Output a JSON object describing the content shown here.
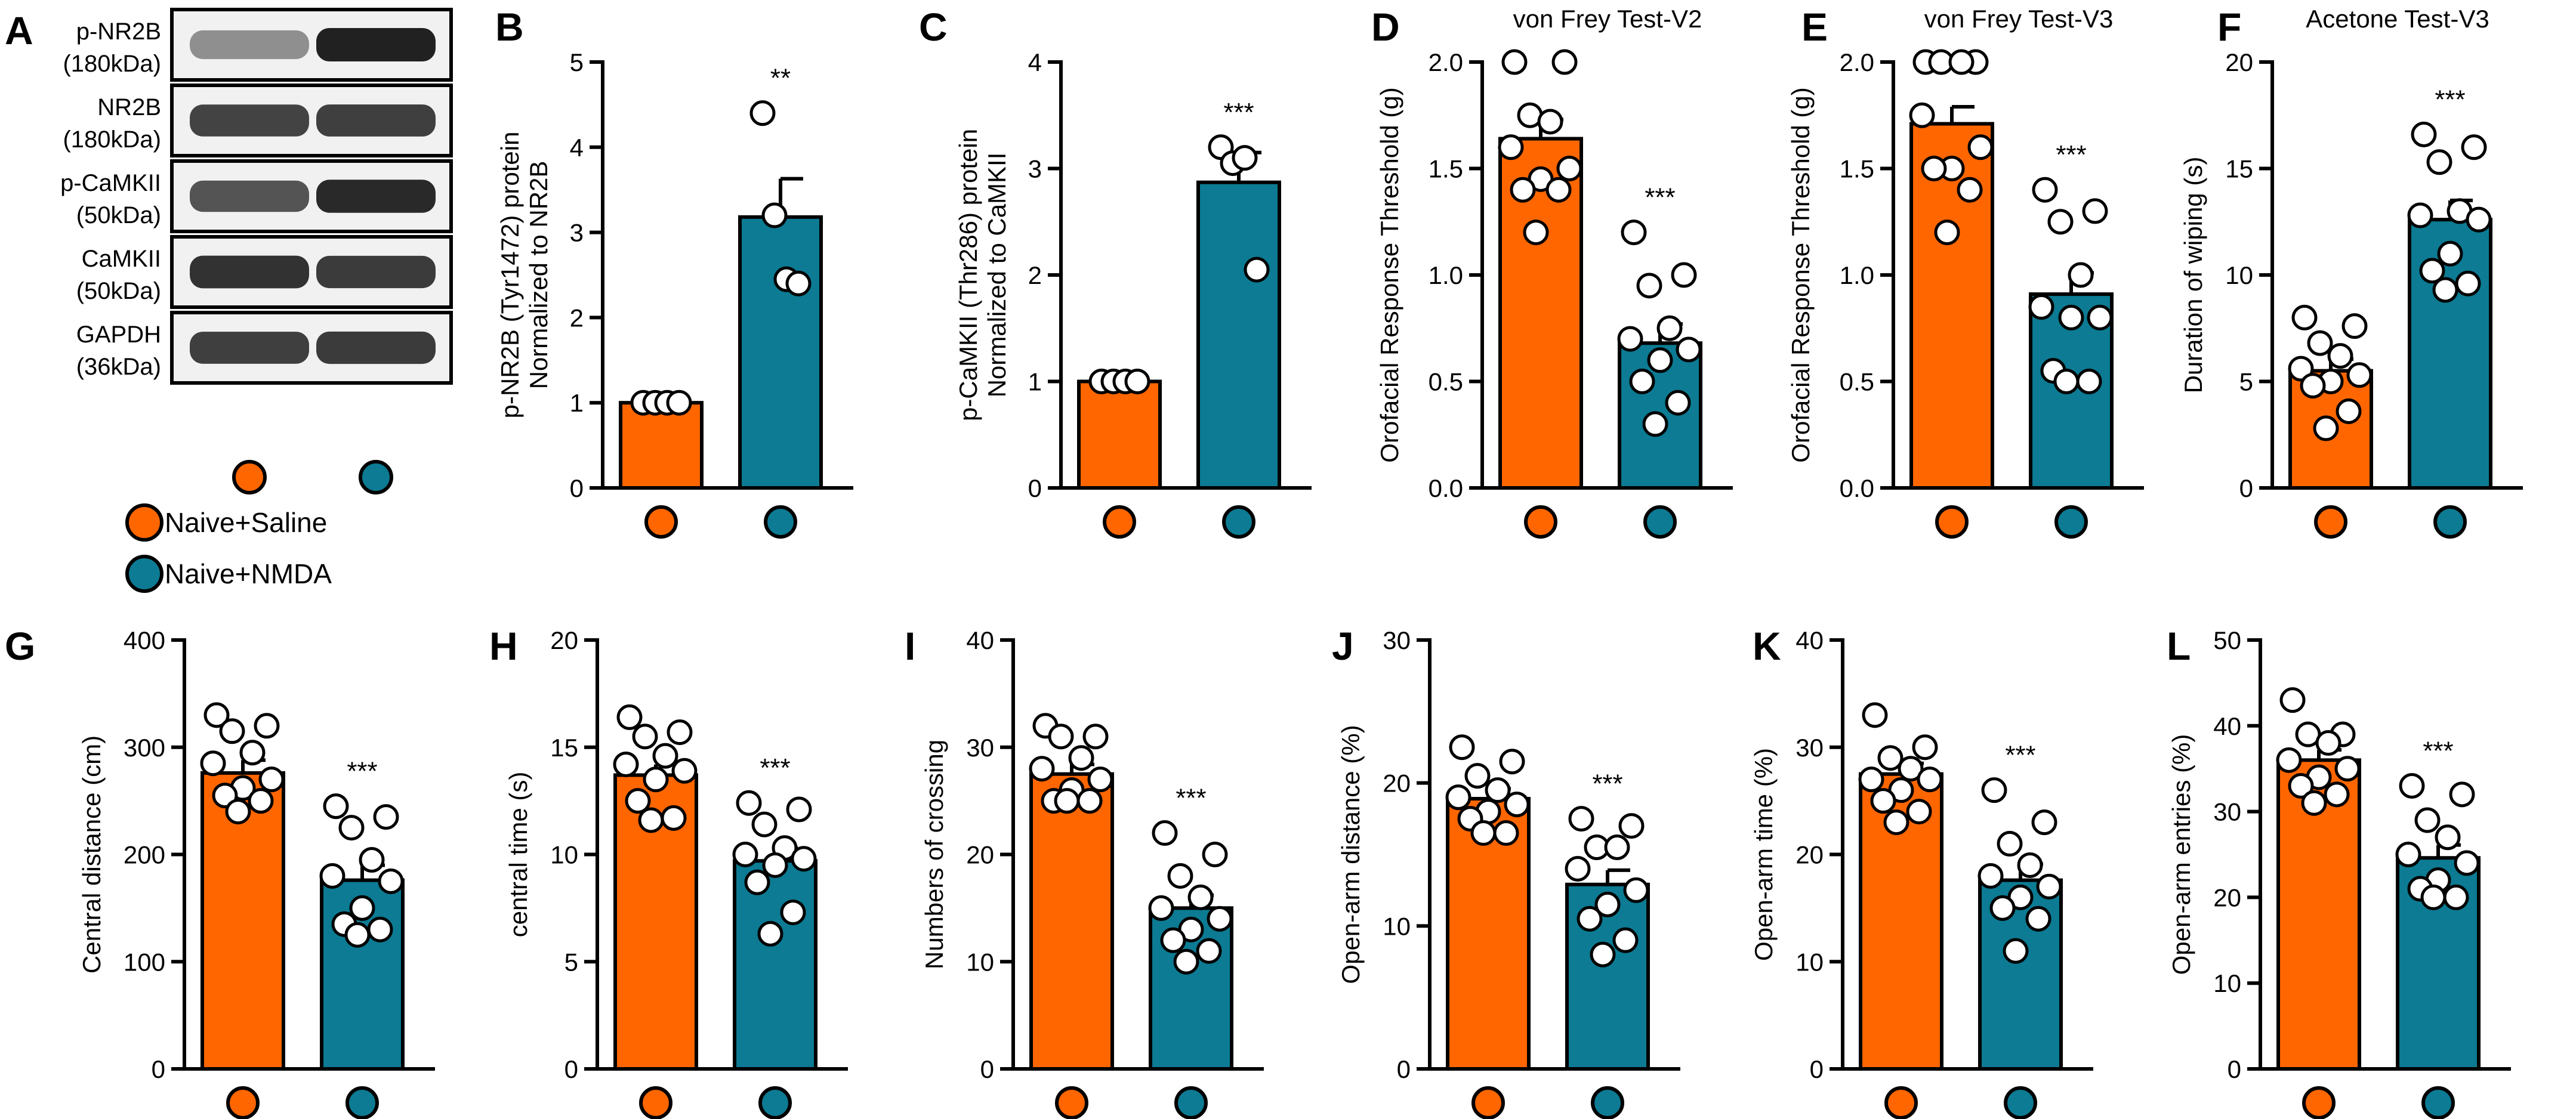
{
  "colors": {
    "saline": "#FF6600",
    "nmda": "#0C7B93",
    "black": "#000000",
    "white": "#FFFFFF"
  },
  "significance_marker": "***",
  "legend": [
    {
      "label": "Naive+Saline",
      "color": "#FF6600"
    },
    {
      "label": "Naive+NMDA",
      "color": "#0C7B93"
    }
  ],
  "western_blot": {
    "panel_letter": "A",
    "blots": [
      {
        "name": "p-NR2B",
        "mw": "(180kDa)",
        "band_intensity": [
          0.35,
          1.0
        ]
      },
      {
        "name": "NR2B",
        "mw": "(180kDa)",
        "band_intensity": [
          0.8,
          0.82
        ]
      },
      {
        "name": "p-CaMKII",
        "mw": "(50kDa)",
        "band_intensity": [
          0.7,
          0.95
        ]
      },
      {
        "name": "CaMKII",
        "mw": "(50kDa)",
        "band_intensity": [
          0.9,
          0.85
        ]
      },
      {
        "name": "GAPDH",
        "mw": "(36kDa)",
        "band_intensity": [
          0.82,
          0.85
        ]
      }
    ]
  },
  "chart_data": [
    {
      "id": "B",
      "type": "bar",
      "title": "",
      "ylabel": [
        "p-NR2B (Tyr1472) protein",
        "Normalized to NR2B"
      ],
      "ylim": [
        0,
        5
      ],
      "ticks": [
        "0",
        "1",
        "2",
        "3",
        "4",
        "5"
      ],
      "tick_values": [
        0,
        1,
        2,
        3,
        4,
        5
      ],
      "categories": [
        "Naive+Saline",
        "Naive+NMDA"
      ],
      "series": [
        {
          "name": "Naive+Saline",
          "mean": 1.0,
          "sem": 0.0,
          "points": [
            1.0,
            1.0,
            1.0,
            1.0
          ]
        },
        {
          "name": "Naive+NMDA",
          "mean": 3.18,
          "sem": 0.45,
          "points": [
            4.4,
            3.2,
            2.45,
            2.4
          ]
        }
      ],
      "significance": "**"
    },
    {
      "id": "C",
      "type": "bar",
      "title": "",
      "ylabel": [
        "p-CaMKII (Thr286) protein",
        "Normalized to CaMKII"
      ],
      "ylim": [
        0,
        4
      ],
      "ticks": [
        "0",
        "1",
        "2",
        "3",
        "4"
      ],
      "tick_values": [
        0,
        1,
        2,
        3,
        4
      ],
      "categories": [
        "Naive+Saline",
        "Naive+NMDA"
      ],
      "series": [
        {
          "name": "Naive+Saline",
          "mean": 1.0,
          "sem": 0.0,
          "points": [
            1.0,
            1.0,
            1.0,
            1.0
          ]
        },
        {
          "name": "Naive+NMDA",
          "mean": 2.87,
          "sem": 0.28,
          "points": [
            3.2,
            3.05,
            3.1,
            2.05
          ]
        }
      ],
      "significance": "***"
    },
    {
      "id": "D",
      "type": "bar",
      "title": "von Frey Test-V2",
      "ylabel": [
        "Orofacial Response Threshold (g)"
      ],
      "ylim": [
        0,
        2
      ],
      "ticks": [
        "0.0",
        "0.5",
        "1.0",
        "1.5",
        "2.0"
      ],
      "tick_values": [
        0,
        0.5,
        1,
        1.5,
        2
      ],
      "categories": [
        "Naive+Saline",
        "Naive+NMDA"
      ],
      "series": [
        {
          "name": "Naive+Saline",
          "mean": 1.64,
          "sem": 0.09,
          "points": [
            2.0,
            2.0,
            1.75,
            1.72,
            1.6,
            1.5,
            1.45,
            1.4,
            1.4,
            1.2
          ]
        },
        {
          "name": "Naive+NMDA",
          "mean": 0.68,
          "sem": 0.09,
          "points": [
            1.2,
            1.0,
            0.95,
            0.75,
            0.7,
            0.65,
            0.6,
            0.5,
            0.4,
            0.3
          ]
        }
      ],
      "significance": "***"
    },
    {
      "id": "E",
      "type": "bar",
      "title": "von Frey Test-V3",
      "ylabel": [
        "Orofacial Response Threshold (g)"
      ],
      "ylim": [
        0,
        2
      ],
      "ticks": [
        "0.0",
        "0.5",
        "1.0",
        "1.5",
        "2.0"
      ],
      "tick_values": [
        0,
        0.5,
        1,
        1.5,
        2
      ],
      "categories": [
        "Naive+Saline",
        "Naive+NMDA"
      ],
      "series": [
        {
          "name": "Naive+Saline",
          "mean": 1.71,
          "sem": 0.08,
          "points": [
            2.0,
            2.0,
            2.0,
            2.0,
            1.75,
            1.6,
            1.5,
            1.5,
            1.4,
            1.2
          ]
        },
        {
          "name": "Naive+NMDA",
          "mean": 0.91,
          "sem": 0.1,
          "points": [
            1.4,
            1.3,
            1.25,
            1.0,
            0.85,
            0.8,
            0.8,
            0.55,
            0.5,
            0.5
          ]
        }
      ],
      "significance": "***"
    },
    {
      "id": "F",
      "type": "bar",
      "title": "Acetone Test-V3",
      "ylabel": [
        "Duration of wiping (s)"
      ],
      "ylim": [
        0,
        20
      ],
      "ticks": [
        "0",
        "5",
        "10",
        "15",
        "20"
      ],
      "tick_values": [
        0,
        5,
        10,
        15,
        20
      ],
      "categories": [
        "Naive+Saline",
        "Naive+NMDA"
      ],
      "series": [
        {
          "name": "Naive+Saline",
          "mean": 5.5,
          "sem": 0.55,
          "points": [
            8.0,
            7.6,
            6.8,
            6.2,
            5.6,
            5.3,
            5.0,
            4.8,
            3.6,
            2.8
          ]
        },
        {
          "name": "Naive+NMDA",
          "mean": 12.6,
          "sem": 0.9,
          "points": [
            16.6,
            16.0,
            15.3,
            13.0,
            12.8,
            12.6,
            11.0,
            10.2,
            9.6,
            9.3
          ]
        }
      ],
      "significance": "***"
    },
    {
      "id": "G",
      "type": "bar",
      "title": "",
      "ylabel": [
        "Central distance (cm)"
      ],
      "ylim": [
        0,
        400
      ],
      "ticks": [
        "0",
        "100",
        "200",
        "300",
        "400"
      ],
      "tick_values": [
        0,
        100,
        200,
        300,
        400
      ],
      "categories": [
        "Naive+Saline",
        "Naive+NMDA"
      ],
      "series": [
        {
          "name": "Naive+Saline",
          "mean": 276,
          "sem": 12,
          "points": [
            330,
            320,
            315,
            295,
            285,
            270,
            262,
            255,
            250,
            240
          ]
        },
        {
          "name": "Naive+NMDA",
          "mean": 176,
          "sem": 14,
          "points": [
            245,
            235,
            225,
            195,
            180,
            175,
            150,
            135,
            130,
            125
          ]
        }
      ],
      "significance": "***"
    },
    {
      "id": "H",
      "type": "bar",
      "title": "",
      "ylabel": [
        "central time (s)"
      ],
      "ylim": [
        0,
        20
      ],
      "ticks": [
        "0",
        "5",
        "10",
        "15",
        "20"
      ],
      "tick_values": [
        0,
        5,
        10,
        15,
        20
      ],
      "categories": [
        "Naive+Saline",
        "Naive+NMDA"
      ],
      "series": [
        {
          "name": "Naive+Saline",
          "mean": 13.7,
          "sem": 0.5,
          "points": [
            16.4,
            15.7,
            15.5,
            14.6,
            14.2,
            13.9,
            13.5,
            12.5,
            11.7,
            11.6
          ]
        },
        {
          "name": "Naive+NMDA",
          "mean": 9.7,
          "sem": 0.6,
          "points": [
            12.4,
            12.1,
            11.4,
            10.3,
            10.0,
            9.8,
            9.5,
            8.7,
            7.3,
            6.3
          ]
        }
      ],
      "significance": "***"
    },
    {
      "id": "I",
      "type": "bar",
      "title": "",
      "ylabel": [
        "Numbers of crossing"
      ],
      "ylim": [
        0,
        40
      ],
      "ticks": [
        "0",
        "10",
        "20",
        "30",
        "40"
      ],
      "tick_values": [
        0,
        10,
        20,
        30,
        40
      ],
      "categories": [
        "Naive+Saline",
        "Naive+NMDA"
      ],
      "series": [
        {
          "name": "Naive+Saline",
          "mean": 27.5,
          "sem": 0.9,
          "points": [
            32,
            31,
            31,
            29,
            28,
            27,
            26,
            25,
            25,
            25
          ]
        },
        {
          "name": "Naive+NMDA",
          "mean": 15.0,
          "sem": 1.2,
          "points": [
            22,
            20,
            18,
            16,
            15,
            14,
            13,
            12,
            11,
            10
          ]
        }
      ],
      "significance": "***"
    },
    {
      "id": "J",
      "type": "bar",
      "title": "",
      "ylabel": [
        "Open-arm distance (%)"
      ],
      "ylim": [
        0,
        30
      ],
      "ticks": [
        "0",
        "10",
        "20",
        "30"
      ],
      "tick_values": [
        0,
        10,
        20,
        30
      ],
      "categories": [
        "Naive+Saline",
        "Naive+NMDA"
      ],
      "series": [
        {
          "name": "Naive+Saline",
          "mean": 18.9,
          "sem": 0.7,
          "points": [
            22.5,
            21.5,
            20.5,
            19.5,
            19.0,
            18.5,
            18.0,
            17.5,
            16.5,
            16.5
          ]
        },
        {
          "name": "Naive+NMDA",
          "mean": 12.9,
          "sem": 1.0,
          "points": [
            17.5,
            17.0,
            15.5,
            15.5,
            14.0,
            12.5,
            11.5,
            10.5,
            9.0,
            8.0
          ]
        }
      ],
      "significance": "***"
    },
    {
      "id": "K",
      "type": "bar",
      "title": "",
      "ylabel": [
        "Open-arm time (%)"
      ],
      "ylim": [
        0,
        40
      ],
      "ticks": [
        "0",
        "10",
        "20",
        "30",
        "40"
      ],
      "tick_values": [
        0,
        10,
        20,
        30,
        40
      ],
      "categories": [
        "Naive+Saline",
        "Naive+NMDA"
      ],
      "series": [
        {
          "name": "Naive+Saline",
          "mean": 27.5,
          "sem": 1.0,
          "points": [
            33,
            30,
            29,
            28,
            27,
            27,
            26,
            25,
            24,
            23
          ]
        },
        {
          "name": "Naive+NMDA",
          "mean": 17.6,
          "sem": 1.5,
          "points": [
            26,
            23,
            21,
            19,
            18,
            17,
            16,
            15,
            14,
            11
          ]
        }
      ],
      "significance": "***"
    },
    {
      "id": "L",
      "type": "bar",
      "title": "",
      "ylabel": [
        "Open-arm entries (%)"
      ],
      "ylim": [
        0,
        50
      ],
      "ticks": [
        "0",
        "10",
        "20",
        "30",
        "40",
        "50"
      ],
      "tick_values": [
        0,
        10,
        20,
        30,
        40,
        50
      ],
      "categories": [
        "Naive+Saline",
        "Naive+NMDA"
      ],
      "series": [
        {
          "name": "Naive+Saline",
          "mean": 36.0,
          "sem": 1.2,
          "points": [
            43,
            39,
            39,
            38,
            36,
            35,
            34,
            33,
            32,
            31
          ]
        },
        {
          "name": "Naive+NMDA",
          "mean": 24.6,
          "sem": 1.5,
          "points": [
            33,
            32,
            29,
            27,
            25,
            24,
            22,
            21,
            20,
            20
          ]
        }
      ],
      "significance": "***"
    }
  ]
}
